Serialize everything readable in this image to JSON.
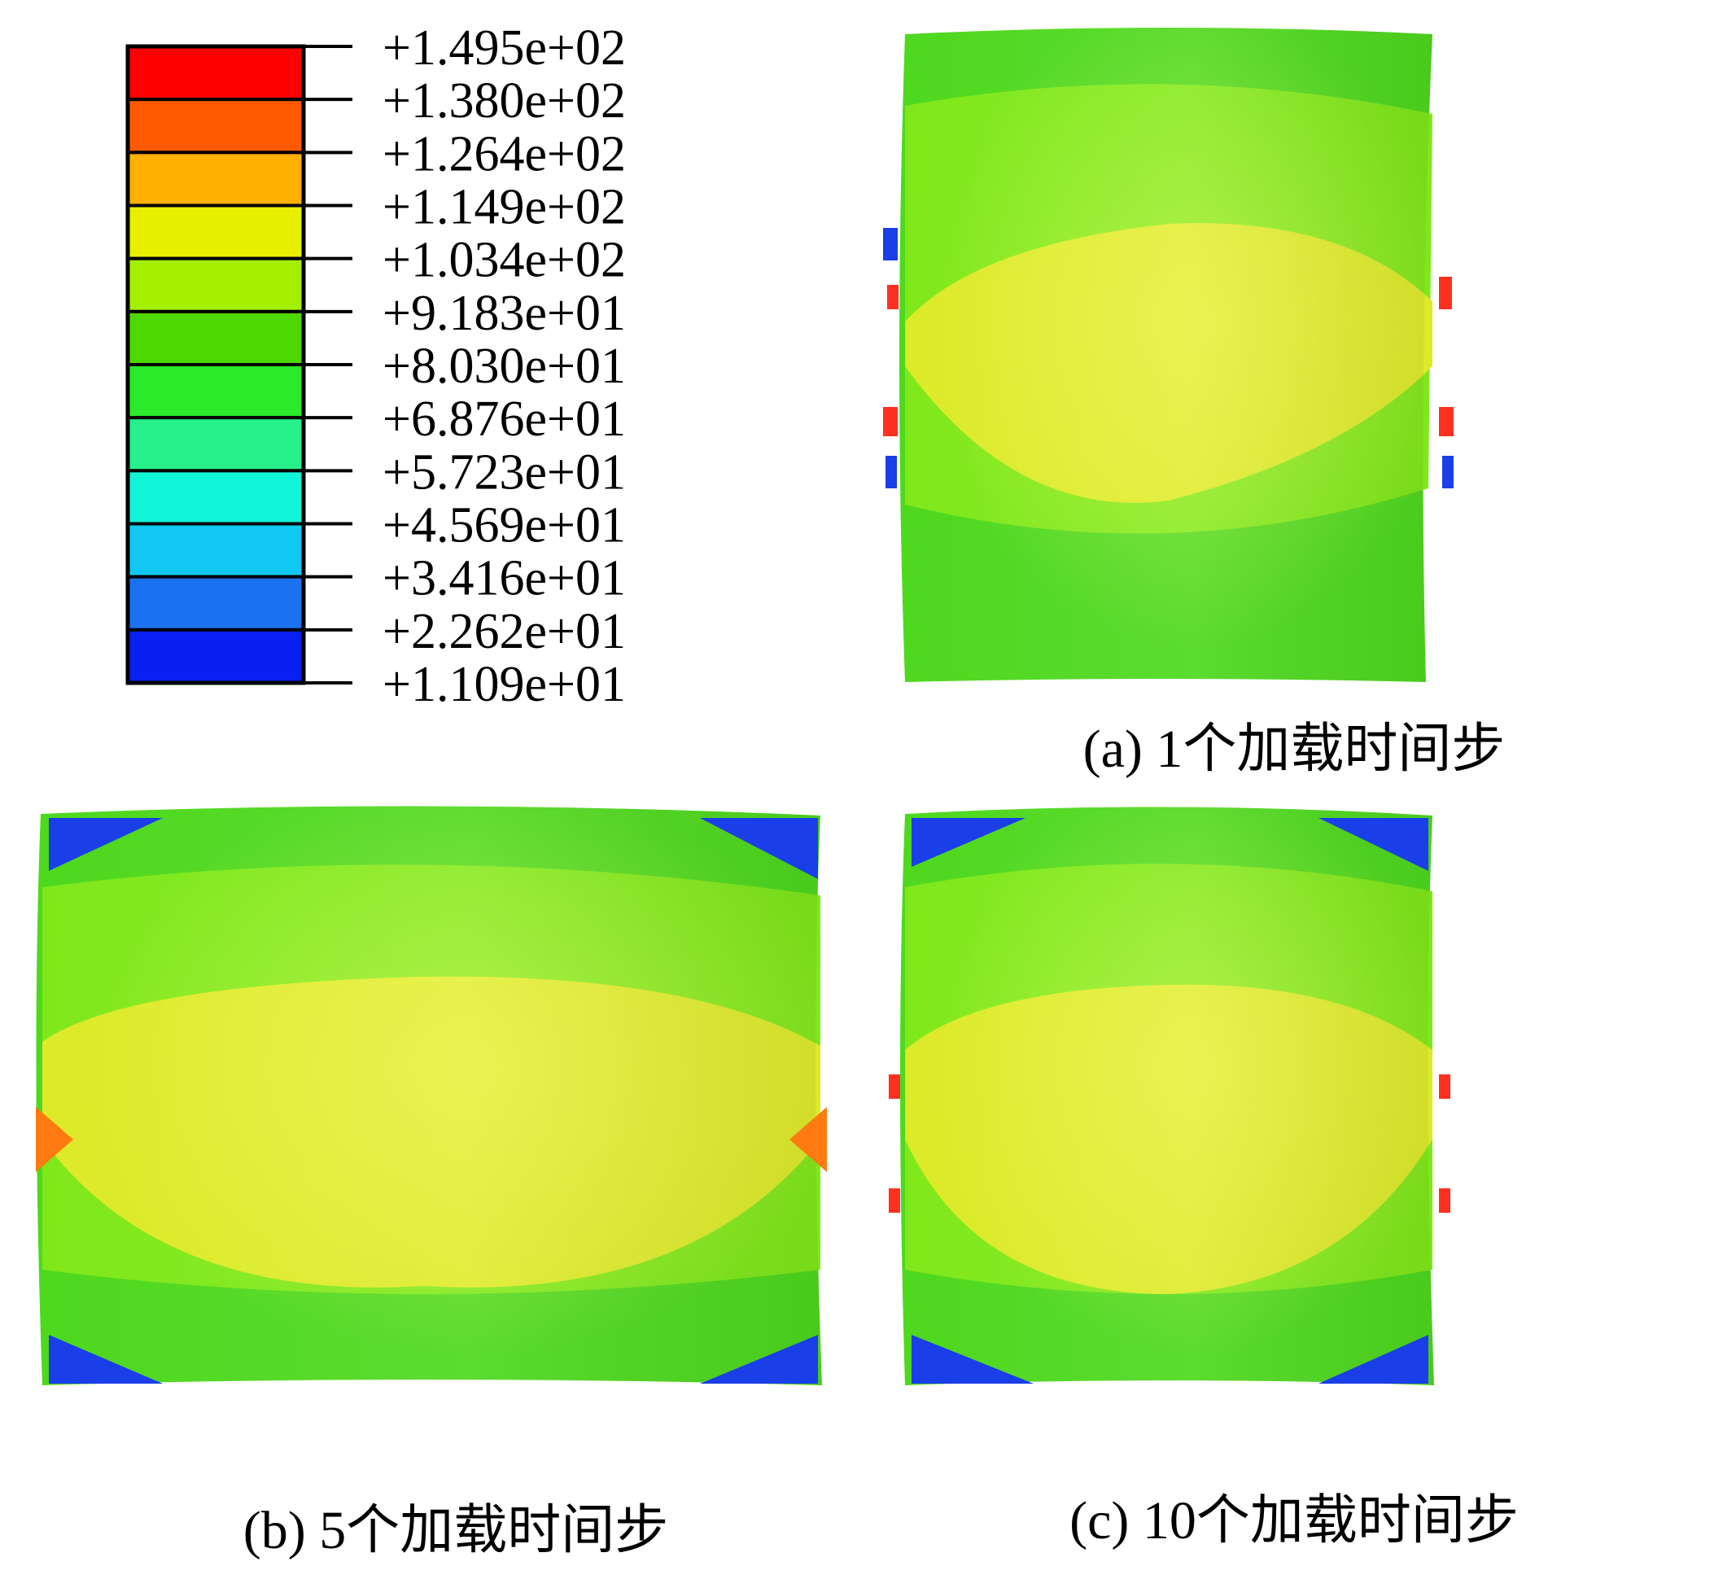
{
  "legend": {
    "labels": [
      "+1.495e+02",
      "+1.380e+02",
      "+1.264e+02",
      "+1.149e+02",
      "+1.034e+02",
      "+9.183e+01",
      "+8.030e+01",
      "+6.876e+01",
      "+5.723e+01",
      "+4.569e+01",
      "+3.416e+01",
      "+2.262e+01",
      "+1.109e+01"
    ],
    "colors": [
      "#ff0000",
      "#ff5a00",
      "#ffb000",
      "#e8f000",
      "#a4ef00",
      "#4cd800",
      "#2aea2a",
      "#26f08a",
      "#10f4d8",
      "#10c8f2",
      "#1a72f0",
      "#0a20f2"
    ]
  },
  "panels": [
    {
      "caption": "(a) 1个加载时间步"
    },
    {
      "caption": "(b) 5个加载时间步"
    },
    {
      "caption": "(c) 10个加载时间步"
    }
  ],
  "colors": {
    "outer_green": "#4ed81e",
    "mid_green": "#7fe81a",
    "core_yellow": "#dcea28",
    "low_blue": "#1a3ee8",
    "high_orange": "#ff7a10"
  }
}
